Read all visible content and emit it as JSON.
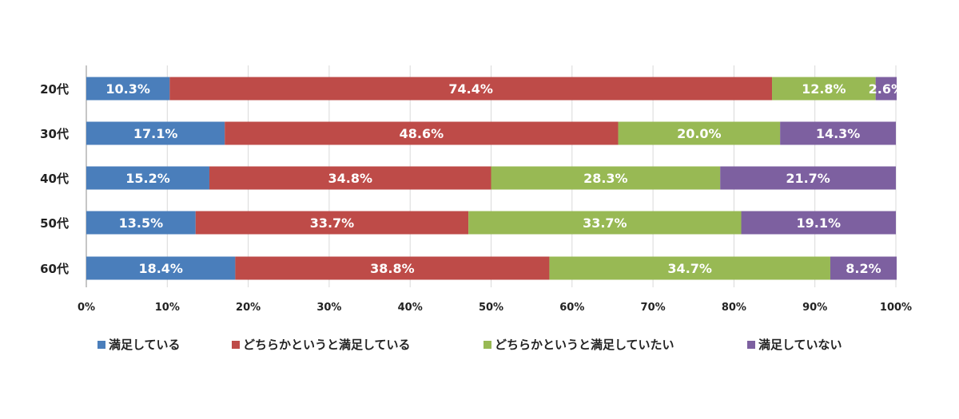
{
  "chart_data": {
    "type": "bar",
    "orientation": "horizontal",
    "stacked": true,
    "title": "",
    "xlabel": "",
    "ylabel": "",
    "xlim": [
      0,
      100
    ],
    "grid": true,
    "legend_position": "bottom",
    "categories": [
      "20代",
      "30代",
      "40代",
      "50代",
      "60代"
    ],
    "x_ticks": [
      "0%",
      "10%",
      "20%",
      "30%",
      "40%",
      "50%",
      "60%",
      "70%",
      "80%",
      "90%",
      "100%"
    ],
    "series": [
      {
        "name": "満足している",
        "color": "#4a7ebb",
        "values": [
          10.3,
          17.1,
          15.2,
          13.5,
          18.4
        ],
        "labels": [
          "10.3%",
          "17.1%",
          "15.2%",
          "13.5%",
          "18.4%"
        ]
      },
      {
        "name": "どちらかというと満足している",
        "color": "#be4b48",
        "values": [
          74.4,
          48.6,
          34.8,
          33.7,
          38.8
        ],
        "labels": [
          "74.4%",
          "48.6%",
          "34.8%",
          "33.7%",
          "38.8%"
        ]
      },
      {
        "name": "どちらかというと満足していたい",
        "color": "#98b954",
        "values": [
          12.8,
          20.0,
          28.3,
          33.7,
          34.7
        ],
        "labels": [
          "12.8%",
          "20.0%",
          "28.3%",
          "33.7%",
          "34.7%"
        ]
      },
      {
        "name": "満足していない",
        "color": "#7d60a0",
        "values": [
          2.6,
          14.3,
          21.7,
          19.1,
          8.2
        ],
        "labels": [
          "2.6%",
          "14.3%",
          "21.7%",
          "19.1%",
          "8.2%"
        ]
      }
    ]
  }
}
